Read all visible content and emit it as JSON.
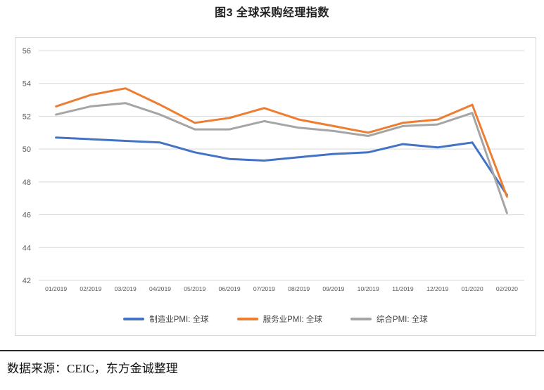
{
  "page": {
    "title": "图3 全球采购经理指数",
    "source_note": "数据来源：CEIC，东方金诚整理"
  },
  "chart_data": {
    "type": "line",
    "title": "图3 全球采购经理指数",
    "categories": [
      "01/2019",
      "02/2019",
      "03/2019",
      "04/2019",
      "05/2019",
      "06/2019",
      "07/2019",
      "08/2019",
      "09/2019",
      "10/2019",
      "11/2019",
      "12/2019",
      "01/2020",
      "02/2020"
    ],
    "series": [
      {
        "name": "制造业PMI: 全球",
        "color": "#4472C4",
        "values": [
          50.7,
          50.6,
          50.5,
          50.4,
          49.8,
          49.4,
          49.3,
          49.5,
          49.7,
          49.8,
          50.3,
          50.1,
          50.4,
          47.2
        ]
      },
      {
        "name": "服务业PMI: 全球",
        "color": "#ED7D31",
        "values": [
          52.6,
          53.3,
          53.7,
          52.7,
          51.6,
          51.9,
          52.5,
          51.8,
          51.4,
          51.0,
          51.6,
          51.8,
          52.7,
          47.1
        ]
      },
      {
        "name": "综合PMI: 全球",
        "color": "#A5A5A5",
        "values": [
          52.1,
          52.6,
          52.8,
          52.1,
          51.2,
          51.2,
          51.7,
          51.3,
          51.1,
          50.8,
          51.4,
          51.5,
          52.2,
          46.1
        ]
      }
    ],
    "ylim": [
      42,
      56
    ],
    "ytick_step": 2,
    "yticks": [
      "56",
      "54",
      "52",
      "50",
      "48",
      "46",
      "44",
      "42"
    ],
    "grid": "horizontal",
    "legend_position": "bottom",
    "axis_text_color": "#595959",
    "gridline_color": "#d9d9d9",
    "line_width": 3
  }
}
